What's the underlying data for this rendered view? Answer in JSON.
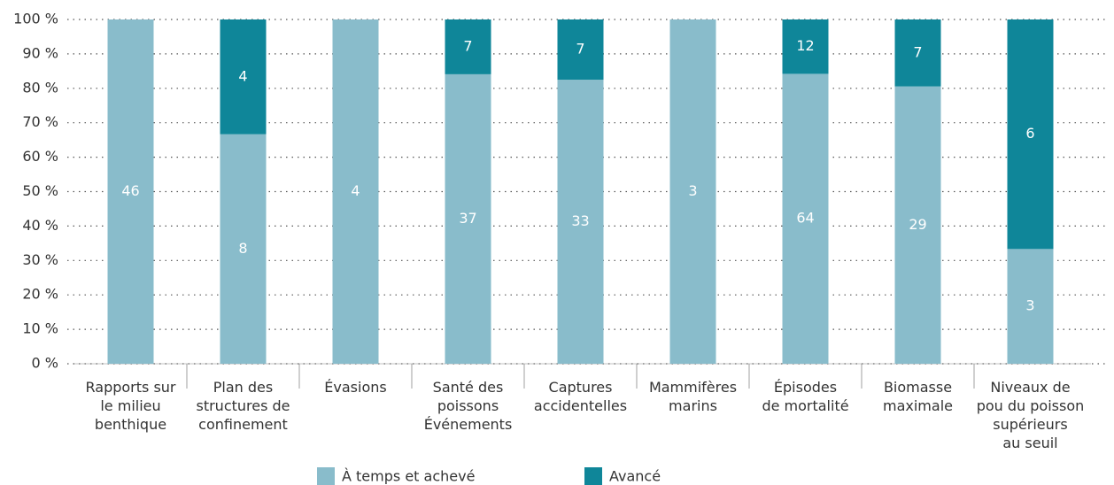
{
  "chart_data": {
    "type": "bar",
    "stacking": "percent",
    "categories": [
      "Rapports sur\nle milieu\nbenthique",
      "Plan des\nstructures de\nconfinement",
      "Évasions",
      "Santé des\npoissons\nÉvénements",
      "Captures\naccidentelles",
      "Mammifères\nmarins",
      "Épisodes\nde mortalité",
      "Biomasse\nmaximale",
      "Niveaux de\npou du poisson\nsupérieurs\nau seuil"
    ],
    "series": [
      {
        "name": "À temps et achevé",
        "color": "#89bccb",
        "values": [
          46,
          8,
          4,
          37,
          33,
          3,
          64,
          29,
          3
        ]
      },
      {
        "name": "Avancé",
        "color": "#0f8699",
        "values": [
          0,
          4,
          0,
          7,
          7,
          0,
          12,
          7,
          6
        ]
      }
    ],
    "ylim": [
      0,
      100
    ],
    "yticks": [
      {
        "value": 0,
        "label": "0 %"
      },
      {
        "value": 10,
        "label": "10 %"
      },
      {
        "value": 20,
        "label": "20 %"
      },
      {
        "value": 30,
        "label": "30 %"
      },
      {
        "value": 40,
        "label": "40 %"
      },
      {
        "value": 50,
        "label": "50 %"
      },
      {
        "value": 60,
        "label": "60 %"
      },
      {
        "value": 70,
        "label": "70 %"
      },
      {
        "value": 80,
        "label": "80 %"
      },
      {
        "value": 90,
        "label": "90 %"
      },
      {
        "value": 100,
        "label": "100 %"
      }
    ],
    "grid": true,
    "legend": "bottom"
  }
}
